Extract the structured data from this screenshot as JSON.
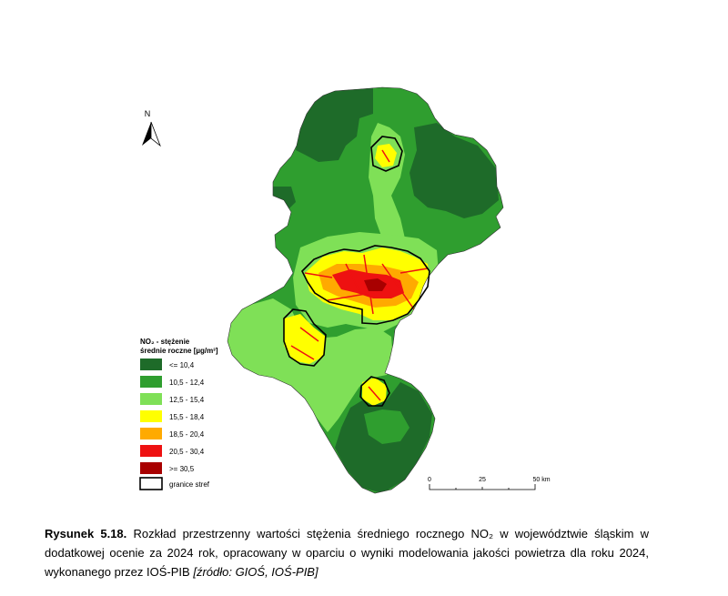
{
  "map": {
    "north_label": "N",
    "legend": {
      "title_line1": "NO₂ - stężenie",
      "title_line2": "średnie roczne [µg/m³]",
      "classes": [
        {
          "label": "<= 10,4",
          "color": "#1e6b29"
        },
        {
          "label": "10,5 - 12,4",
          "color": "#2f9e2f"
        },
        {
          "label": "12,5 - 15,4",
          "color": "#7fe057"
        },
        {
          "label": "15,5 - 18,4",
          "color": "#ffff00"
        },
        {
          "label": "18,5 - 20,4",
          "color": "#ffaa00"
        },
        {
          "label": "20,5 - 30,4",
          "color": "#ee1111"
        },
        {
          "label": ">= 30,5",
          "color": "#a80000"
        }
      ],
      "zone_boundary_label": "granice stref"
    },
    "scale_bar": {
      "tick_labels": [
        "0",
        "25",
        "50 km"
      ]
    }
  },
  "caption": {
    "label": "Rysunek 5.18.",
    "text": "Rozkład przestrzenny wartości stężenia średniego rocznego NO₂ w województwie śląskim w dodatkowej ocenie za 2024 rok, opracowany w oparciu o wyniki modelowania jakości powietrza dla roku 2024, wykonanego przez IOŚ-PIB",
    "source": "[źródło: GIOŚ, IOŚ-PIB]"
  }
}
